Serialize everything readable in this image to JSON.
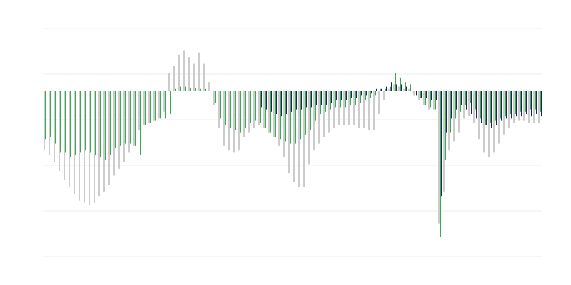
{
  "chart_data": {
    "type": "bar",
    "categories": [
      null,
      null,
      null,
      null,
      null,
      null,
      null,
      null,
      null,
      null,
      null,
      null,
      null,
      null,
      null,
      null,
      null,
      null,
      null,
      null,
      null,
      null,
      null,
      null,
      null,
      null,
      null,
      null,
      null,
      null,
      null,
      null,
      null,
      null,
      null,
      null,
      null,
      null,
      null,
      null,
      null,
      null,
      null,
      null,
      null,
      null,
      null,
      null,
      null,
      null,
      null,
      null,
      null,
      null,
      null,
      null,
      null,
      null,
      null,
      null,
      null,
      null,
      null,
      null,
      null,
      null,
      null,
      null,
      null,
      null,
      null,
      null,
      null,
      null,
      null,
      null,
      null,
      null,
      null,
      null,
      null,
      null,
      null,
      null,
      null,
      null,
      null,
      null,
      null,
      null,
      null,
      null,
      null,
      null,
      null,
      null,
      null,
      null,
      null,
      null
    ],
    "series": [
      {
        "color": "#cccccc",
        "values": [
          -1.3,
          -1.4,
          -1.55,
          -1.75,
          -1.95,
          -2.1,
          -2.25,
          -2.4,
          -2.45,
          -2.5,
          -2.45,
          -2.3,
          -2.2,
          -2.05,
          -1.85,
          -1.7,
          -1.55,
          -1.35,
          -1.2,
          -0.85,
          -0.75,
          -0.7,
          -0.65,
          -0.6,
          -0.45,
          0.4,
          0.55,
          0.8,
          0.9,
          0.75,
          0.6,
          0.85,
          0.6,
          0.2,
          -0.3,
          -0.8,
          -1.2,
          -1.3,
          -1.35,
          -1.3,
          -1.0,
          -0.9,
          -0.8,
          -0.75,
          -0.8,
          -0.9,
          -1.0,
          -1.2,
          -1.45,
          -1.8,
          -2.0,
          -2.1,
          -2.1,
          -1.6,
          -1.3,
          -1.15,
          -1.0,
          -0.9,
          -0.8,
          -0.75,
          -0.75,
          -0.75,
          -0.75,
          -0.8,
          -0.8,
          -0.85,
          -0.85,
          -0.5,
          -0.2,
          0.05,
          0.15,
          0.1,
          0.05,
          0.05,
          -0.1,
          -0.2,
          -0.3,
          -0.4,
          -0.4,
          -2.9,
          -2.2,
          -1.3,
          -1.1,
          -0.9,
          -0.6,
          -0.55,
          -0.7,
          -1.05,
          -1.35,
          -1.45,
          -1.35,
          -1.15,
          -0.95,
          -0.8,
          -0.7,
          -0.65,
          -0.65,
          -0.7,
          -0.7,
          -0.7
        ]
      },
      {
        "color": "#3aaa55",
        "values": [
          -1.05,
          -1.0,
          -1.15,
          -1.35,
          -1.35,
          -1.45,
          -1.4,
          -1.35,
          -1.3,
          -1.35,
          -1.4,
          -1.45,
          -1.5,
          -1.4,
          -1.25,
          -1.2,
          -1.15,
          -1.15,
          -1.2,
          -1.4,
          -0.75,
          -0.7,
          -0.65,
          -0.6,
          -0.6,
          -0.5,
          0.05,
          0.1,
          0.1,
          0.08,
          0.08,
          0.05,
          0.05,
          0.0,
          -0.25,
          -0.6,
          -0.75,
          -0.8,
          -0.85,
          -0.9,
          -0.8,
          -0.7,
          -0.65,
          -0.7,
          -0.8,
          -0.9,
          -1.0,
          -1.05,
          -1.1,
          -1.15,
          -1.15,
          -1.05,
          -0.95,
          -0.85,
          -0.65,
          -0.5,
          -0.45,
          -0.4,
          -0.35,
          -0.35,
          -0.35,
          -0.3,
          -0.3,
          -0.25,
          -0.2,
          -0.15,
          -0.1,
          0.05,
          0.05,
          0.1,
          0.4,
          0.3,
          0.2,
          0.15,
          0.0,
          -0.15,
          -0.3,
          -0.35,
          -0.4,
          -3.2,
          -1.5,
          -0.9,
          -0.6,
          -0.45,
          -0.3,
          -0.25,
          -0.4,
          -0.6,
          -0.75,
          -0.7,
          -0.65,
          -0.6,
          -0.55,
          -0.5,
          -0.5,
          -0.45,
          -0.45,
          -0.4,
          -0.4,
          -0.45
        ]
      },
      {
        "color": "#1a2550",
        "values": [
          0,
          0,
          0,
          0,
          0,
          0,
          0,
          0,
          0,
          0,
          0,
          0,
          0,
          0,
          0,
          0,
          0,
          0,
          0,
          0,
          0,
          0,
          0,
          0,
          0,
          0,
          0,
          0,
          0,
          0,
          0,
          0,
          0,
          0,
          0,
          0,
          0,
          0,
          0,
          0,
          0,
          0,
          0,
          -0.35,
          -0.4,
          -0.45,
          -0.5,
          -0.55,
          -0.5,
          -0.45,
          -0.4,
          -0.4,
          -0.35,
          -0.35,
          -0.3,
          -0.3,
          -0.3,
          -0.25,
          -0.2,
          -0.2,
          -0.2,
          -0.15,
          -0.15,
          -0.1,
          -0.1,
          -0.05,
          0.05,
          0.05,
          0.1,
          0.2,
          0.15,
          0.15,
          0.1,
          0.0,
          -0.1,
          -0.15,
          -0.15,
          -0.2,
          -0.2,
          -2.3,
          -0.9,
          -0.6,
          -0.4,
          -0.3,
          -0.4,
          -0.5,
          -0.6,
          -0.7,
          -0.75,
          -0.8,
          -0.75,
          -0.65,
          -0.6,
          -0.6,
          -0.55,
          -0.55,
          -0.5,
          -0.55,
          -0.5,
          -0.55
        ]
      }
    ],
    "ylim": [
      -3.625,
      1.375
    ],
    "yticks": [
      1.375,
      0.375,
      -0.625,
      -1.625,
      -2.625,
      -3.625
    ],
    "grid": true
  }
}
